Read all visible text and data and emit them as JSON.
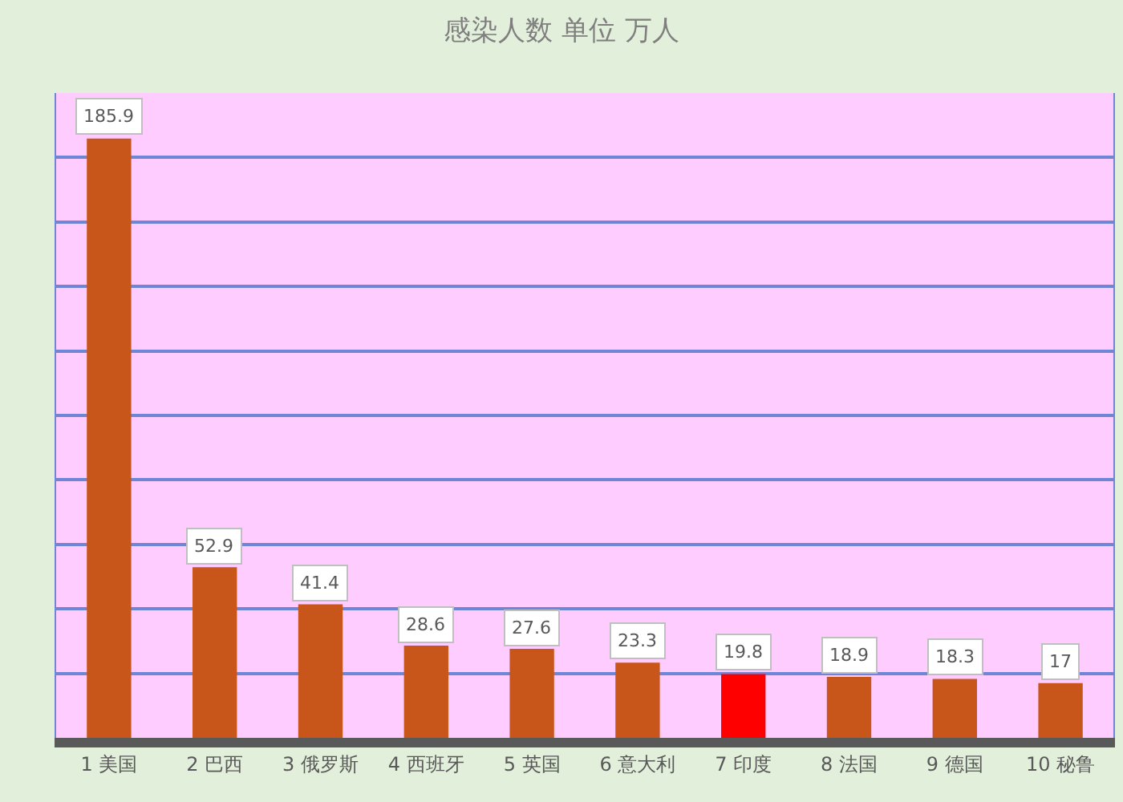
{
  "chart_data": {
    "type": "bar",
    "title": "感染人数 单位 万人",
    "categories": [
      "1 美国",
      "2 巴西",
      "3 俄罗斯",
      "4 西班牙",
      "5 英国",
      "6 意大利",
      "7 印度",
      "8 法国",
      "9 德国",
      "10 秘鲁"
    ],
    "values": [
      185.9,
      52.9,
      41.4,
      28.6,
      27.6,
      23.3,
      19.8,
      18.9,
      18.3,
      17
    ],
    "colors": [
      "#c8561a",
      "#c8561a",
      "#c8561a",
      "#c8561a",
      "#c8561a",
      "#c8561a",
      "#ff0000",
      "#c8561a",
      "#c8561a",
      "#c8561a"
    ],
    "ylim": [
      0,
      200
    ],
    "yticks": [
      {
        "value": 20,
        "label": null
      },
      {
        "value": 40,
        "label": null
      },
      {
        "value": 60,
        "label": null
      },
      {
        "value": 80,
        "label": null
      },
      {
        "value": 100,
        "label": null
      },
      {
        "value": 120,
        "label": null
      },
      {
        "value": 140,
        "label": null
      },
      {
        "value": 160,
        "label": null
      },
      {
        "value": 180,
        "label": null
      },
      {
        "value": 200,
        "label": null
      }
    ],
    "tick_labels": "x",
    "grid": "y",
    "data_labels": true
  }
}
